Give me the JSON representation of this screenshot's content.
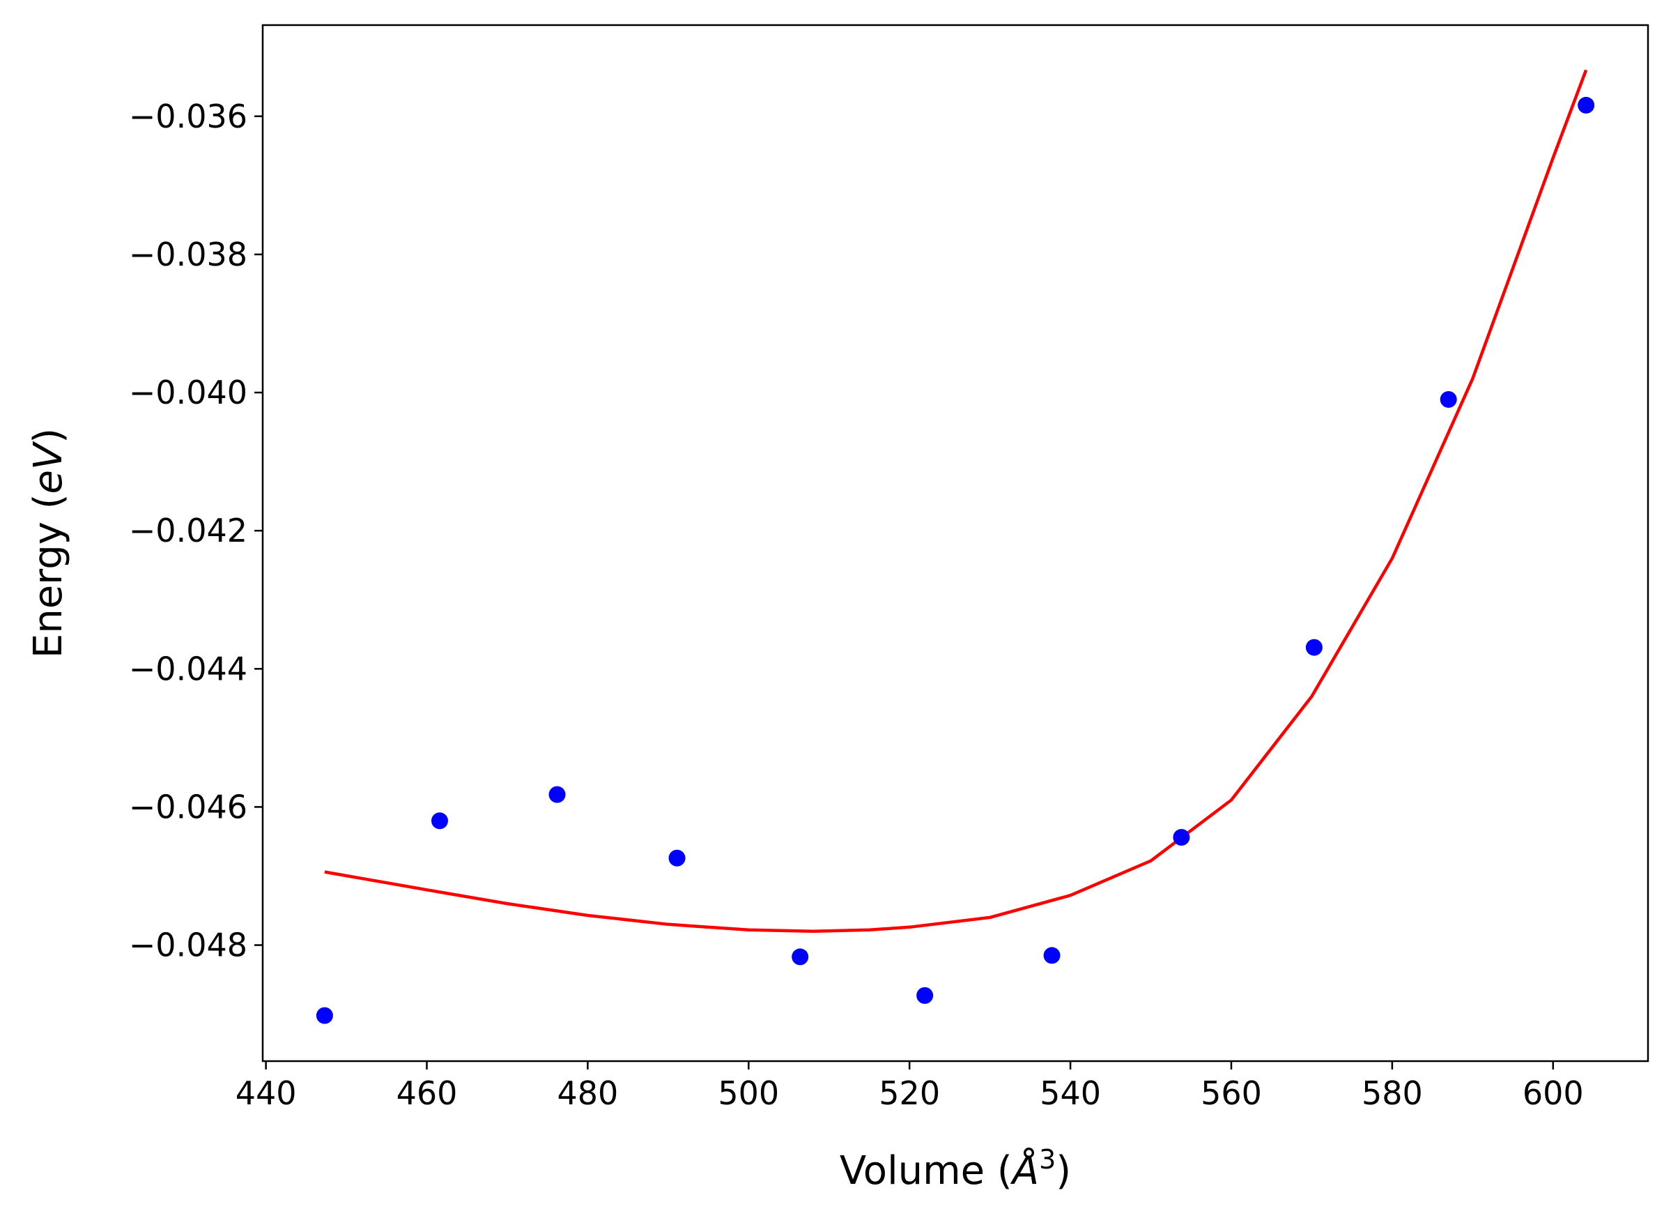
{
  "chart_data": {
    "type": "scatter",
    "xlabel": {
      "prefix": "Volume (",
      "symbol": "Å",
      "sup": "3",
      "suffix": ")"
    },
    "ylabel": {
      "prefix": "Energy (",
      "italic": "eV",
      "suffix": ")"
    },
    "xlim": [
      439.6,
      611.8
    ],
    "ylim": [
      -0.04968,
      -0.03468
    ],
    "xticks": [
      440,
      460,
      480,
      500,
      520,
      540,
      560,
      580,
      600
    ],
    "yticks": [
      -0.048,
      -0.046,
      -0.044,
      -0.042,
      -0.04,
      -0.038,
      -0.036
    ],
    "ytick_labels": [
      "−0.048",
      "−0.046",
      "−0.044",
      "−0.042",
      "−0.040",
      "−0.038",
      "−0.036"
    ],
    "grid": false,
    "series": [
      {
        "kind": "scatter",
        "color": "#0000ff",
        "points": [
          {
            "x": 447.3,
            "y": -0.04902
          },
          {
            "x": 461.6,
            "y": -0.0462
          },
          {
            "x": 476.2,
            "y": -0.04582
          },
          {
            "x": 491.1,
            "y": -0.04674
          },
          {
            "x": 506.4,
            "y": -0.04817
          },
          {
            "x": 521.9,
            "y": -0.04873
          },
          {
            "x": 537.7,
            "y": -0.04815
          },
          {
            "x": 553.8,
            "y": -0.04644
          },
          {
            "x": 570.3,
            "y": -0.04369
          },
          {
            "x": 587.0,
            "y": -0.0401
          },
          {
            "x": 604.1,
            "y": -0.03584
          }
        ]
      },
      {
        "kind": "line",
        "color": "#ff0000",
        "points": [
          {
            "x": 447.3,
            "y": -0.04694
          },
          {
            "x": 460,
            "y": -0.0472
          },
          {
            "x": 470,
            "y": -0.0474
          },
          {
            "x": 480,
            "y": -0.04757
          },
          {
            "x": 490,
            "y": -0.0477
          },
          {
            "x": 500,
            "y": -0.04778
          },
          {
            "x": 508,
            "y": -0.0478
          },
          {
            "x": 515,
            "y": -0.04778
          },
          {
            "x": 520,
            "y": -0.04774
          },
          {
            "x": 530,
            "y": -0.0476
          },
          {
            "x": 540,
            "y": -0.04728
          },
          {
            "x": 550,
            "y": -0.04678
          },
          {
            "x": 560,
            "y": -0.0459
          },
          {
            "x": 570,
            "y": -0.0444
          },
          {
            "x": 580,
            "y": -0.0424
          },
          {
            "x": 590,
            "y": -0.0398
          },
          {
            "x": 600,
            "y": -0.0366
          },
          {
            "x": 604.1,
            "y": -0.03533
          }
        ]
      }
    ]
  }
}
